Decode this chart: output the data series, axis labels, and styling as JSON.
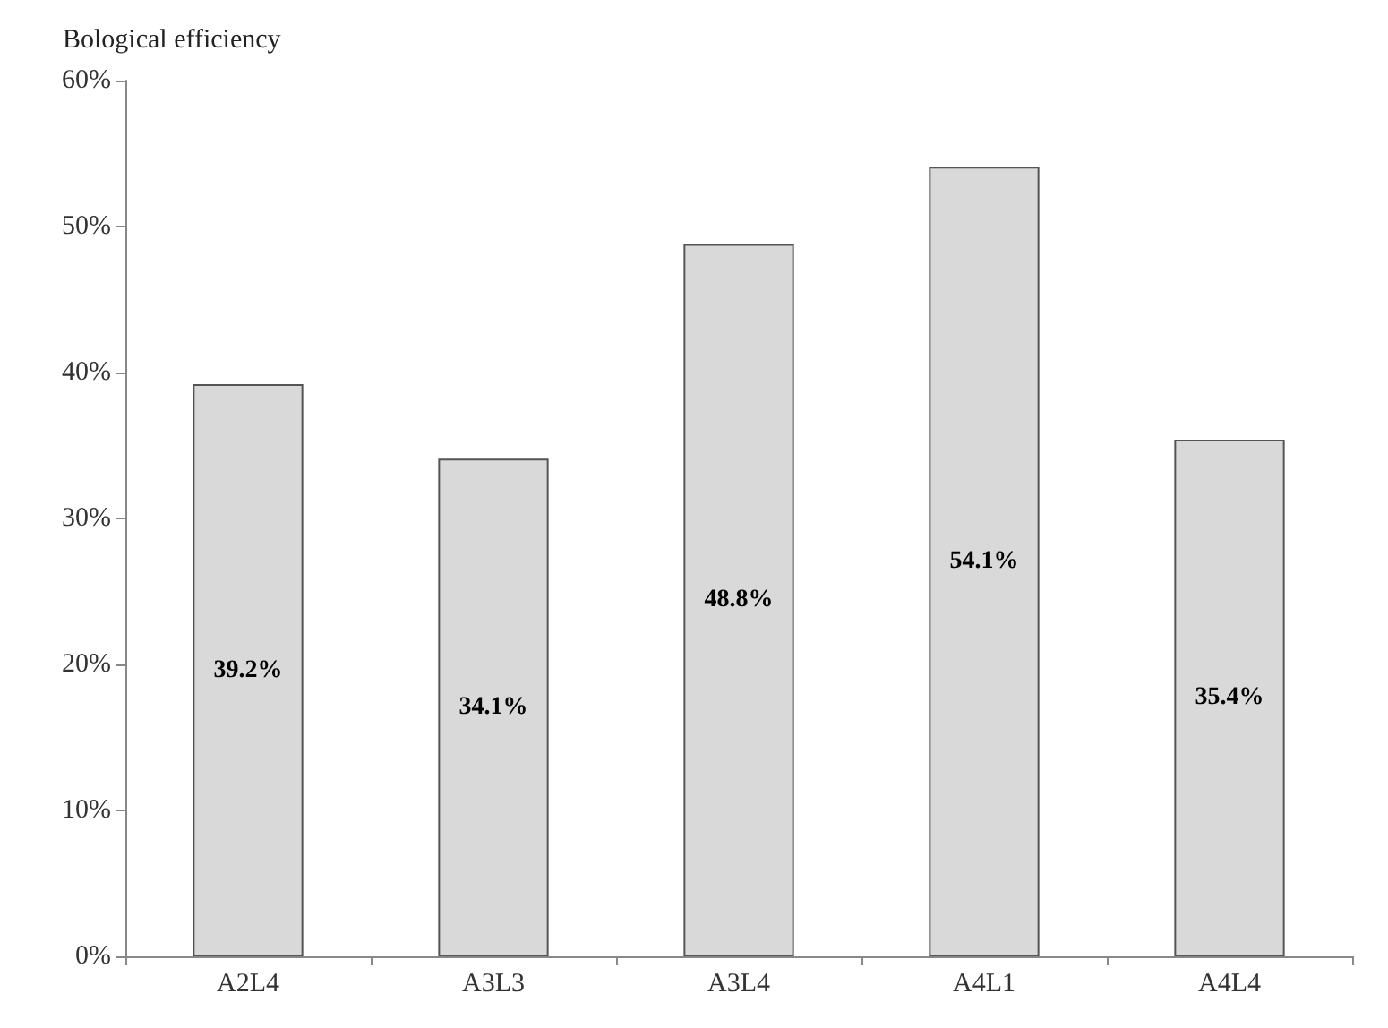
{
  "chart_data": {
    "type": "bar",
    "ylabel": "Bological efficiency",
    "categories": [
      "A2L4",
      "A3L3",
      "A3L4",
      "A4L1",
      "A4L4"
    ],
    "values": [
      39.2,
      34.1,
      48.8,
      54.1,
      35.4
    ],
    "value_labels": [
      "39.2%",
      "34.1%",
      "48.8%",
      "54.1%",
      "35.4%"
    ],
    "color": "#d9d9d9",
    "ylim": [
      0,
      60
    ],
    "yticks": [
      {
        "value": 0,
        "label": "0%"
      },
      {
        "value": 10,
        "label": "10%"
      },
      {
        "value": 20,
        "label": "20%"
      },
      {
        "value": 30,
        "label": "30%"
      },
      {
        "value": 40,
        "label": "40%"
      },
      {
        "value": 50,
        "label": "50%"
      },
      {
        "value": 60,
        "label": "60%"
      }
    ],
    "grid": false
  }
}
